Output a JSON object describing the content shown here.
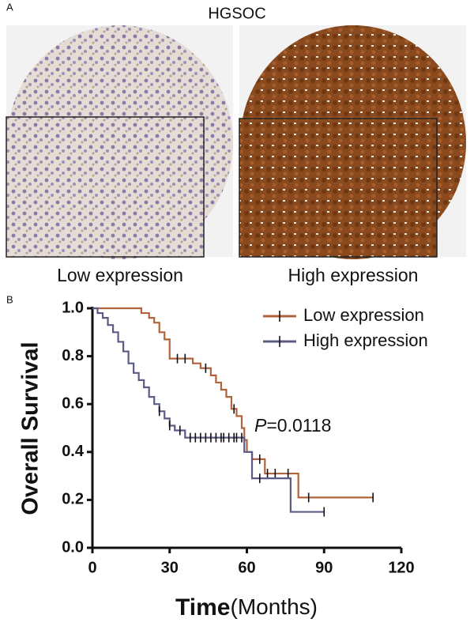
{
  "panel_a": {
    "label": "A",
    "title": "HGSOC",
    "captions": [
      "Low expression",
      "High expression"
    ]
  },
  "chart_data": {
    "type": "km",
    "panel_label": "B",
    "y_label": "Overall Survival",
    "x_label": "Time",
    "x_label_unit": "(Months)",
    "annotation": {
      "symbol": "P",
      "text": "=0.0118"
    },
    "xlim": [
      0,
      120
    ],
    "xticks": [
      0,
      30,
      60,
      90,
      120
    ],
    "ylim": [
      0,
      1
    ],
    "yticks": [
      {
        "value": 0,
        "label": "0.0"
      },
      {
        "value": 0.2,
        "label": "0.2"
      },
      {
        "value": 0.4,
        "label": "0.4"
      },
      {
        "value": 0.6,
        "label": "0.6"
      },
      {
        "value": 0.8,
        "label": "0.8"
      },
      {
        "value": 1,
        "label": "1.0"
      }
    ],
    "legend": "upper right",
    "series": [
      {
        "name": "Low expression",
        "color": "#b0643c",
        "x": [
          0,
          19,
          22,
          24,
          26,
          28,
          30,
          39,
          42,
          46,
          48,
          50,
          52,
          54,
          56,
          58,
          59,
          60,
          62,
          67,
          80,
          109
        ],
        "values": [
          1,
          0.98,
          0.96,
          0.94,
          0.9,
          0.87,
          0.79,
          0.77,
          0.75,
          0.72,
          0.69,
          0.66,
          0.63,
          0.58,
          0.55,
          0.5,
          0.45,
          0.4,
          0.37,
          0.31,
          0.21,
          0.21
        ],
        "censor_x": [
          33,
          36,
          44,
          55,
          65,
          68,
          71,
          76,
          84,
          109
        ],
        "censor_values": [
          0.79,
          0.79,
          0.75,
          0.58,
          0.37,
          0.31,
          0.31,
          0.31,
          0.21,
          0.21
        ]
      },
      {
        "name": "High expression",
        "color": "#5a5c86",
        "x": [
          0,
          2,
          4,
          6,
          8,
          10,
          12,
          14,
          16,
          18,
          20,
          22,
          24,
          26,
          28,
          30,
          32,
          36,
          59,
          62,
          77,
          90
        ],
        "values": [
          1,
          0.98,
          0.96,
          0.93,
          0.9,
          0.86,
          0.82,
          0.77,
          0.73,
          0.7,
          0.67,
          0.63,
          0.6,
          0.57,
          0.54,
          0.51,
          0.49,
          0.46,
          0.4,
          0.29,
          0.15,
          0.15
        ],
        "censor_x": [
          26,
          30,
          34,
          38,
          40,
          42,
          44,
          46,
          48,
          50,
          51,
          53,
          55,
          56,
          58,
          65,
          90
        ],
        "censor_values": [
          0.57,
          0.51,
          0.49,
          0.46,
          0.46,
          0.46,
          0.46,
          0.46,
          0.46,
          0.46,
          0.46,
          0.46,
          0.46,
          0.46,
          0.46,
          0.29,
          0.15
        ]
      }
    ]
  }
}
